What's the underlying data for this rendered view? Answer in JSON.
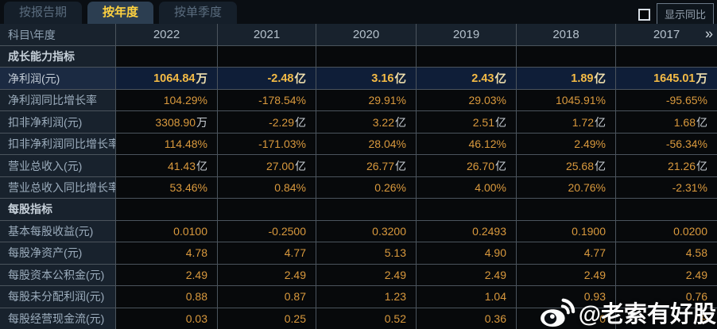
{
  "tabs": [
    {
      "label": "按报告期",
      "active": false
    },
    {
      "label": "按年度",
      "active": true
    },
    {
      "label": "按单季度",
      "active": false
    }
  ],
  "controls": {
    "show_yoy_checked": false,
    "show_yoy_label": "显示同比"
  },
  "table": {
    "corner_header": "科目\\年度",
    "years": [
      "2022",
      "2021",
      "2020",
      "2019",
      "2018",
      "2017"
    ],
    "more_columns_icon": "»",
    "rows": [
      {
        "type": "section",
        "label": "成长能力指标"
      },
      {
        "type": "data",
        "label": "净利润(元)",
        "highlight": true,
        "cells": [
          {
            "v": "1064.84",
            "u": "万"
          },
          {
            "v": "-2.48",
            "u": "亿"
          },
          {
            "v": "3.16",
            "u": "亿"
          },
          {
            "v": "2.43",
            "u": "亿"
          },
          {
            "v": "1.89",
            "u": "亿"
          },
          {
            "v": "1645.01",
            "u": "万"
          }
        ]
      },
      {
        "type": "data",
        "label": "净利润同比增长率",
        "highlight": false,
        "cells": [
          {
            "v": "104.29%",
            "u": ""
          },
          {
            "v": "-178.54%",
            "u": ""
          },
          {
            "v": "29.91%",
            "u": ""
          },
          {
            "v": "29.03%",
            "u": ""
          },
          {
            "v": "1045.91%",
            "u": ""
          },
          {
            "v": "-95.65%",
            "u": ""
          }
        ]
      },
      {
        "type": "data",
        "label": "扣非净利润(元)",
        "highlight": false,
        "cells": [
          {
            "v": "3308.90",
            "u": "万"
          },
          {
            "v": "-2.29",
            "u": "亿"
          },
          {
            "v": "3.22",
            "u": "亿"
          },
          {
            "v": "2.51",
            "u": "亿"
          },
          {
            "v": "1.72",
            "u": "亿"
          },
          {
            "v": "1.68",
            "u": "亿"
          }
        ]
      },
      {
        "type": "data",
        "label": "扣非净利润同比增长率",
        "highlight": false,
        "cells": [
          {
            "v": "114.48%",
            "u": ""
          },
          {
            "v": "-171.03%",
            "u": ""
          },
          {
            "v": "28.04%",
            "u": ""
          },
          {
            "v": "46.12%",
            "u": ""
          },
          {
            "v": "2.49%",
            "u": ""
          },
          {
            "v": "-56.34%",
            "u": ""
          }
        ]
      },
      {
        "type": "data",
        "label": "营业总收入(元)",
        "highlight": false,
        "cells": [
          {
            "v": "41.43",
            "u": "亿"
          },
          {
            "v": "27.00",
            "u": "亿"
          },
          {
            "v": "26.77",
            "u": "亿"
          },
          {
            "v": "26.70",
            "u": "亿"
          },
          {
            "v": "25.68",
            "u": "亿"
          },
          {
            "v": "21.26",
            "u": "亿"
          }
        ]
      },
      {
        "type": "data",
        "label": "营业总收入同比增长率",
        "highlight": false,
        "cells": [
          {
            "v": "53.46%",
            "u": ""
          },
          {
            "v": "0.84%",
            "u": ""
          },
          {
            "v": "0.26%",
            "u": ""
          },
          {
            "v": "4.00%",
            "u": ""
          },
          {
            "v": "20.76%",
            "u": ""
          },
          {
            "v": "-2.31%",
            "u": ""
          }
        ]
      },
      {
        "type": "section",
        "label": "每股指标"
      },
      {
        "type": "data",
        "label": "基本每股收益(元)",
        "highlight": false,
        "cells": [
          {
            "v": "0.0100",
            "u": ""
          },
          {
            "v": "-0.2500",
            "u": ""
          },
          {
            "v": "0.3200",
            "u": ""
          },
          {
            "v": "0.2493",
            "u": ""
          },
          {
            "v": "0.1900",
            "u": ""
          },
          {
            "v": "0.0200",
            "u": ""
          }
        ]
      },
      {
        "type": "data",
        "label": "每股净资产(元)",
        "highlight": false,
        "cells": [
          {
            "v": "4.78",
            "u": ""
          },
          {
            "v": "4.77",
            "u": ""
          },
          {
            "v": "5.13",
            "u": ""
          },
          {
            "v": "4.90",
            "u": ""
          },
          {
            "v": "4.77",
            "u": ""
          },
          {
            "v": "4.58",
            "u": ""
          }
        ]
      },
      {
        "type": "data",
        "label": "每股资本公积金(元)",
        "highlight": false,
        "cells": [
          {
            "v": "2.49",
            "u": ""
          },
          {
            "v": "2.49",
            "u": ""
          },
          {
            "v": "2.49",
            "u": ""
          },
          {
            "v": "2.49",
            "u": ""
          },
          {
            "v": "2.49",
            "u": ""
          },
          {
            "v": "2.49",
            "u": ""
          }
        ]
      },
      {
        "type": "data",
        "label": "每股未分配利润(元)",
        "highlight": false,
        "cells": [
          {
            "v": "0.88",
            "u": ""
          },
          {
            "v": "0.87",
            "u": ""
          },
          {
            "v": "1.23",
            "u": ""
          },
          {
            "v": "1.04",
            "u": ""
          },
          {
            "v": "0.93",
            "u": ""
          },
          {
            "v": "0.76",
            "u": ""
          }
        ]
      },
      {
        "type": "data",
        "label": "每股经营现金流(元)",
        "highlight": false,
        "cells": [
          {
            "v": "0.03",
            "u": ""
          },
          {
            "v": "0.25",
            "u": ""
          },
          {
            "v": "0.52",
            "u": ""
          },
          {
            "v": "0.36",
            "u": ""
          },
          {
            "v": "0",
            "u": ""
          },
          {
            "v": "9",
            "u": ""
          }
        ]
      }
    ]
  },
  "watermark": {
    "icon": "weibo-icon",
    "text": "@老索有好股"
  },
  "colors": {
    "page_bg": "#0a0e13",
    "grid_line": "#4b545d",
    "label_col_bg": "#18222d",
    "data_cell_bg": "#07090b",
    "highlight_row_bg": "#0f1e38",
    "value_orange": "#d9993d",
    "highlight_value": "#f4bb46",
    "active_tab_text": "#ffd240"
  }
}
